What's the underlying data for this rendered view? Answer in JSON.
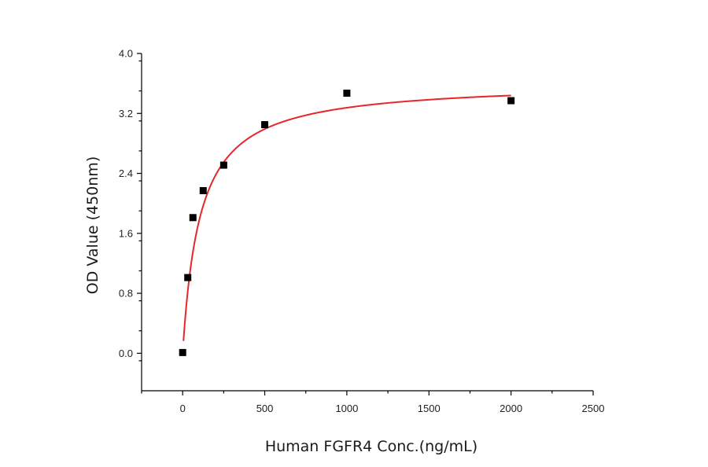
{
  "chart_data": {
    "type": "scatter",
    "title": "",
    "xlabel": "Human FGFR4 Conc.(ng/mL)",
    "ylabel": "OD Value (450nm)",
    "xlim": [
      -250,
      2500
    ],
    "ylim": [
      -0.5,
      4.0
    ],
    "x_ticks": [
      0,
      500,
      1000,
      1500,
      2000,
      2500
    ],
    "x_tick_labels": [
      "0",
      "500",
      "1000",
      "1500",
      "2000",
      "2500"
    ],
    "y_ticks": [
      0.0,
      0.8,
      1.6,
      2.4,
      3.2,
      4.0
    ],
    "y_tick_labels": [
      "0.0",
      "0.8",
      "1.6",
      "2.4",
      "3.2",
      "4.0"
    ],
    "grid": false,
    "series": [
      {
        "kind": "points",
        "marker": "square",
        "color": "#000000",
        "points": [
          {
            "x": 0,
            "y": 0.01
          },
          {
            "x": 31.25,
            "y": 1.01
          },
          {
            "x": 62.5,
            "y": 1.81
          },
          {
            "x": 125,
            "y": 2.17
          },
          {
            "x": 250,
            "y": 2.51
          },
          {
            "x": 500,
            "y": 3.05
          },
          {
            "x": 1000,
            "y": 3.47
          },
          {
            "x": 2000,
            "y": 3.37
          }
        ]
      },
      {
        "kind": "fit-curve",
        "color": "#e8262b",
        "x_range": [
          5,
          2000
        ],
        "model": "A*x/(K+x)",
        "params": {
          "A": 3.62,
          "K": 105
        }
      }
    ]
  }
}
